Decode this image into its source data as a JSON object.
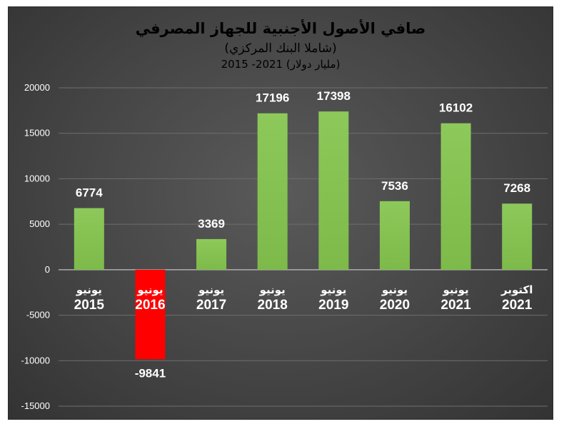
{
  "chart_data": {
    "type": "bar",
    "title": "صافي الأصول الأجنبية للجهاز المصرفي",
    "subtitle": "(شاملا البنك المركزي)",
    "subtitle2": "2015 -2021 (مليار دولار)",
    "categories": [
      {
        "line1": "يونيو",
        "line2": "2015"
      },
      {
        "line1": "يونيو",
        "line2": "2016"
      },
      {
        "line1": "يونيو",
        "line2": "2017"
      },
      {
        "line1": "يونيو",
        "line2": "2018"
      },
      {
        "line1": "يونيو",
        "line2": "2019"
      },
      {
        "line1": "يونيو",
        "line2": "2020"
      },
      {
        "line1": "يونيو",
        "line2": "2021"
      },
      {
        "line1": "اكتوبر",
        "line2": "2021"
      }
    ],
    "values": [
      6774,
      -9841,
      3369,
      17196,
      17398,
      7536,
      16102,
      7268
    ],
    "ylim": [
      -15000,
      20000
    ],
    "yticks": [
      20000,
      15000,
      10000,
      5000,
      0,
      -5000,
      -10000,
      -15000
    ],
    "grid": true,
    "colors": {
      "positive": "#7dba4a",
      "negative": "#ff0000",
      "highlight_category": "#ff0000"
    }
  }
}
